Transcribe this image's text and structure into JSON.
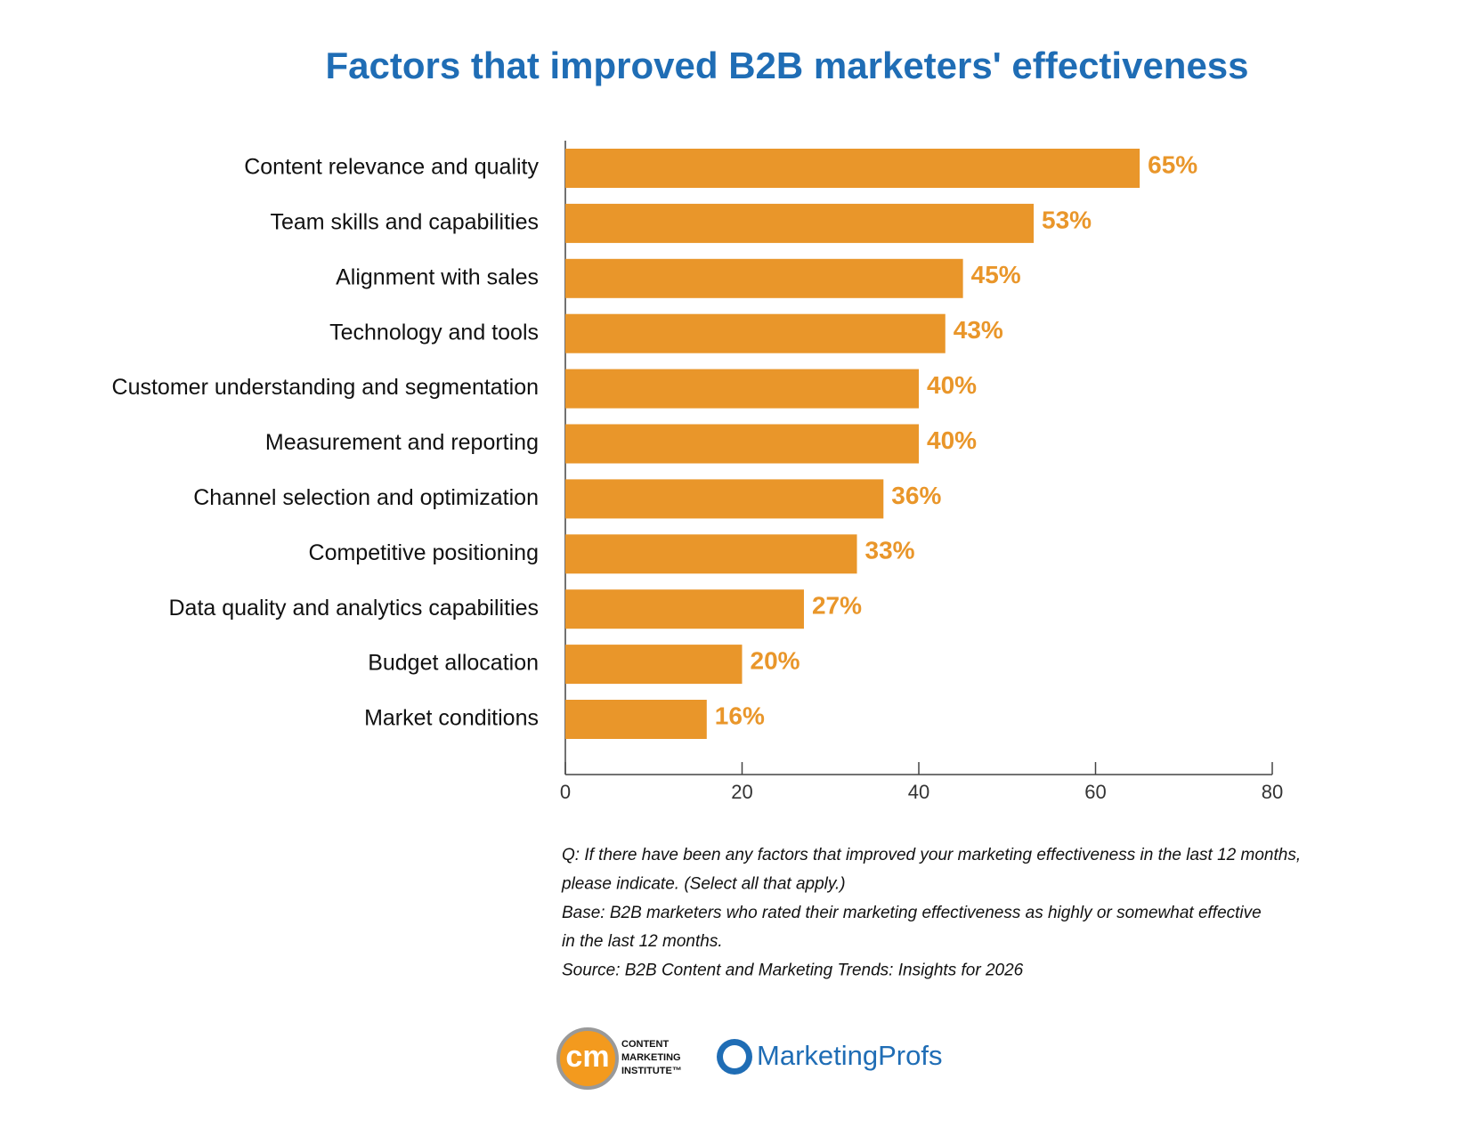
{
  "chart_data": {
    "type": "bar",
    "orientation": "horizontal",
    "title": "Factors that improved B2B marketers' effectiveness",
    "categories": [
      "Content relevance and quality",
      "Team skills and capabilities",
      "Alignment with sales",
      "Technology and tools",
      "Customer understanding and segmentation",
      "Measurement and reporting",
      "Channel selection and optimization",
      "Competitive positioning",
      "Data quality and analytics capabilities",
      "Budget allocation",
      "Market conditions"
    ],
    "values": [
      65,
      53,
      45,
      43,
      40,
      40,
      36,
      33,
      27,
      20,
      16
    ],
    "value_labels": [
      "65%",
      "53%",
      "45%",
      "43%",
      "40%",
      "40%",
      "36%",
      "33%",
      "27%",
      "20%",
      "16%"
    ],
    "color": "#e9962a",
    "xlim": [
      0,
      80
    ],
    "xticks": [
      0,
      20,
      40,
      60,
      80
    ],
    "grid": false,
    "notes": [
      "Q: If there have been any factors that improved your marketing effectiveness in the last 12 months,",
      "please indicate. (Select all that apply.)",
      "Base: B2B marketers who rated their marketing effectiveness as highly or somewhat effective",
      "in the last 12 months.",
      "Source: B2B Content and Marketing Trends: Insights for 2026"
    ]
  },
  "logos": {
    "cmi_mark": "cm",
    "cmi_lines": [
      "CONTENT",
      "MARKETING",
      "INSTITUTE™"
    ],
    "marketingprofs": "MarketingProfs"
  }
}
